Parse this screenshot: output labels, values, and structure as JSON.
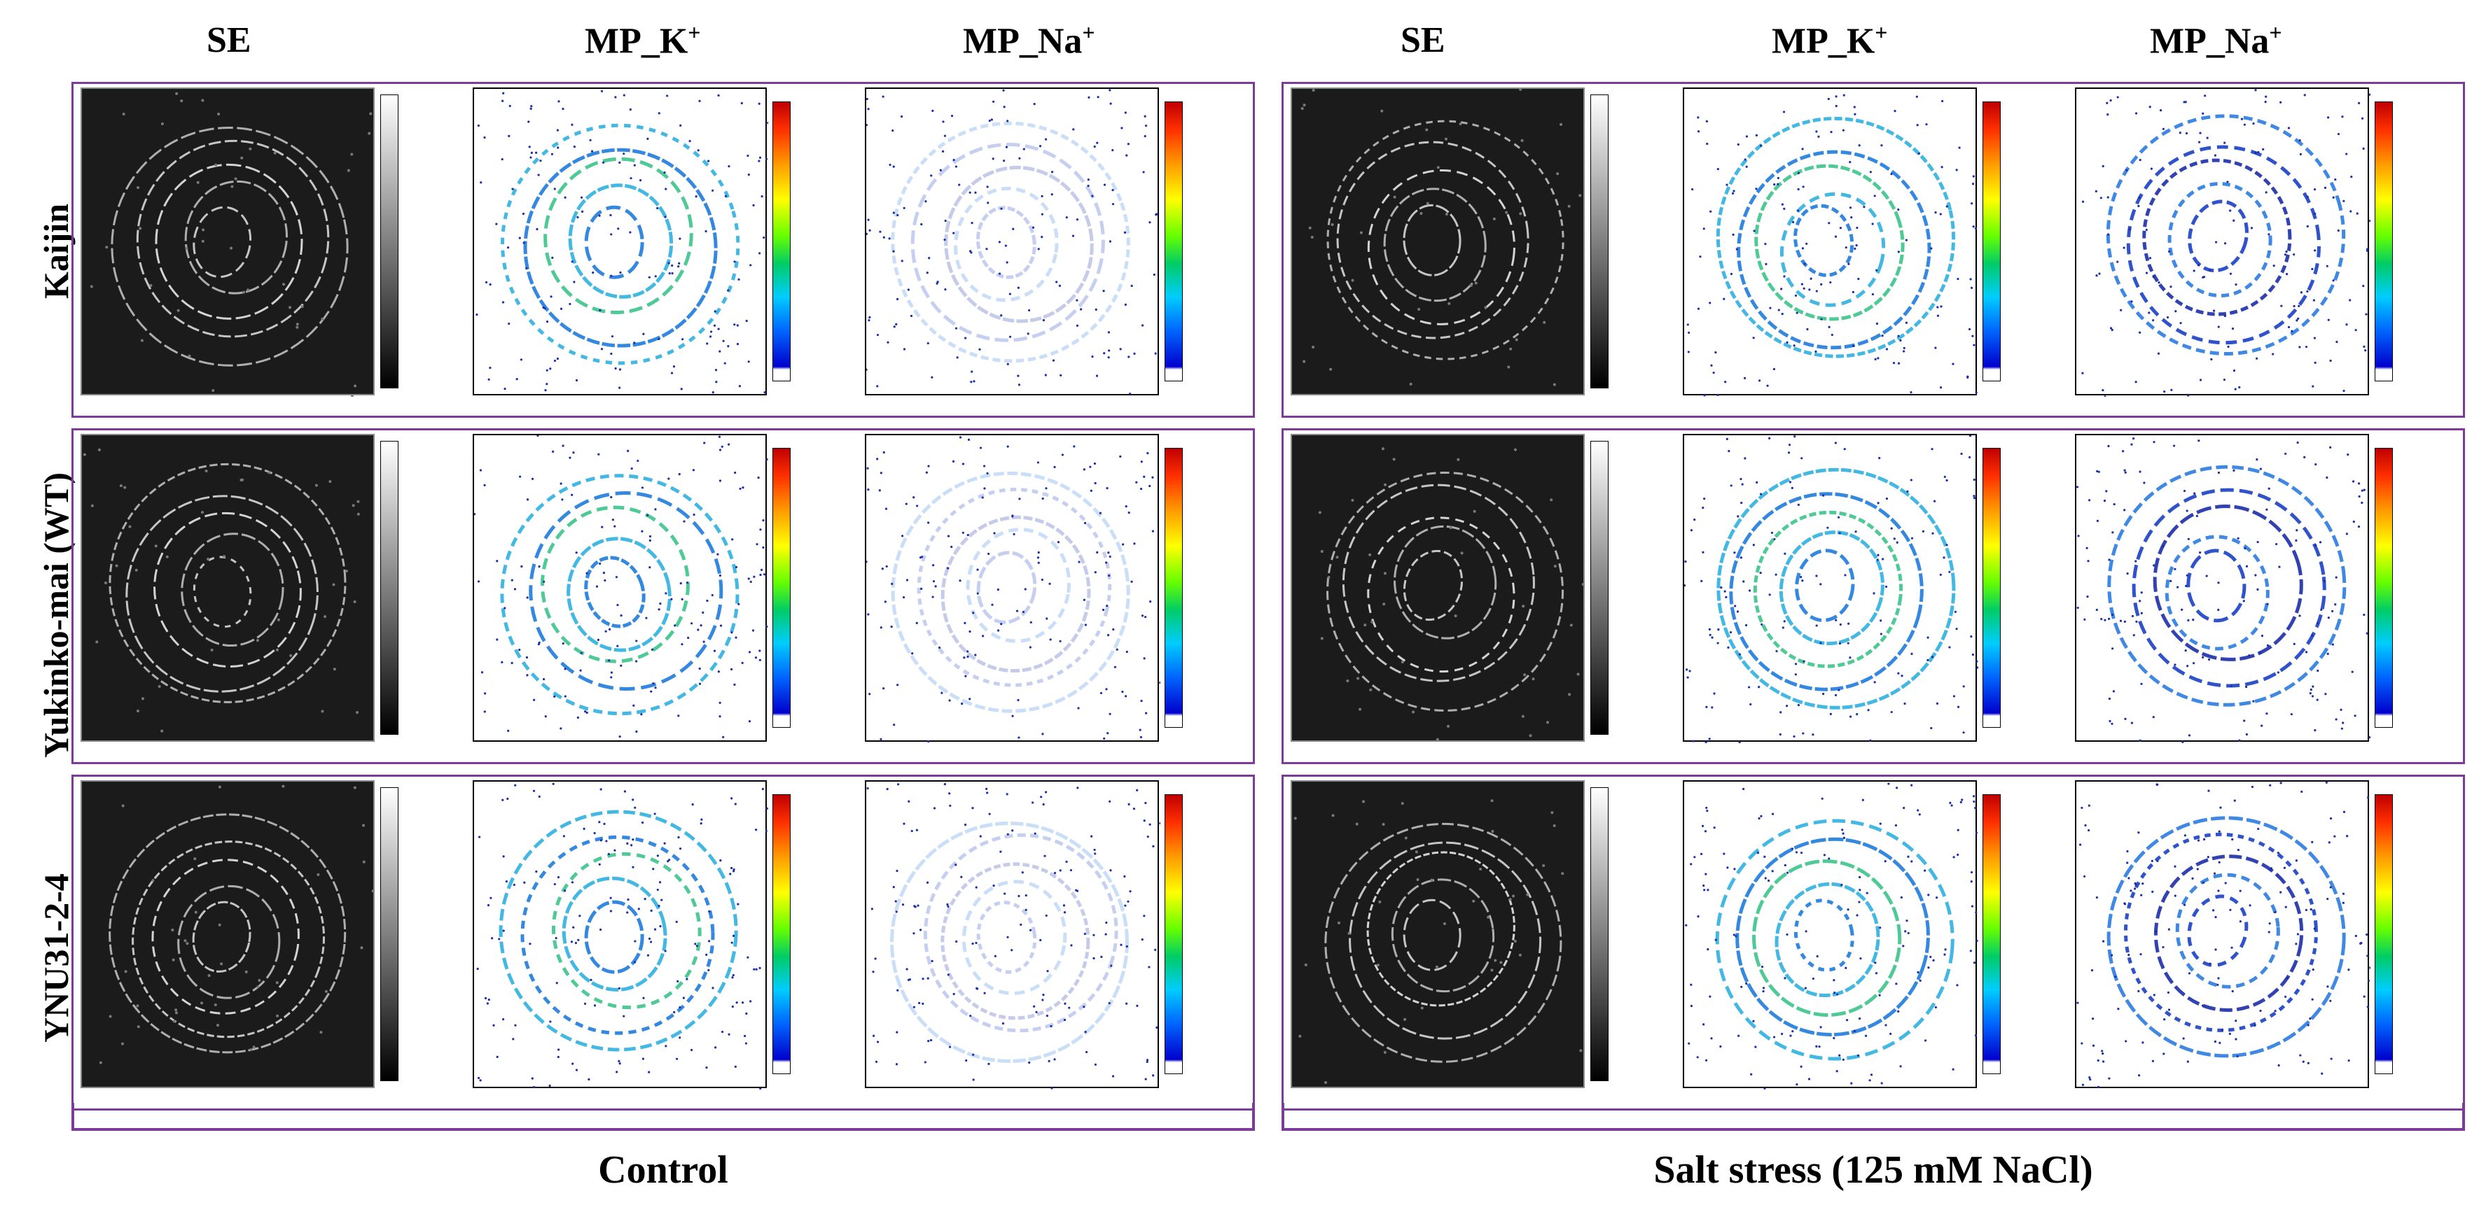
{
  "col_headers": {
    "c1": "SE",
    "c2": "MP_K",
    "c2_sup": "+",
    "c3": "MP_Na",
    "c3_sup": "+",
    "c4": "SE",
    "c5": "MP_K",
    "c5_sup": "+",
    "c6": "MP_Na",
    "c6_sup": "+"
  },
  "rows": [
    "Kaijin",
    "Yukinko-mai (WT)",
    "YNU31-2-4"
  ],
  "groups": [
    "Control",
    "Salt stress (125 mM NaCl)"
  ],
  "colors": {
    "frame": "#7d3c98"
  }
}
